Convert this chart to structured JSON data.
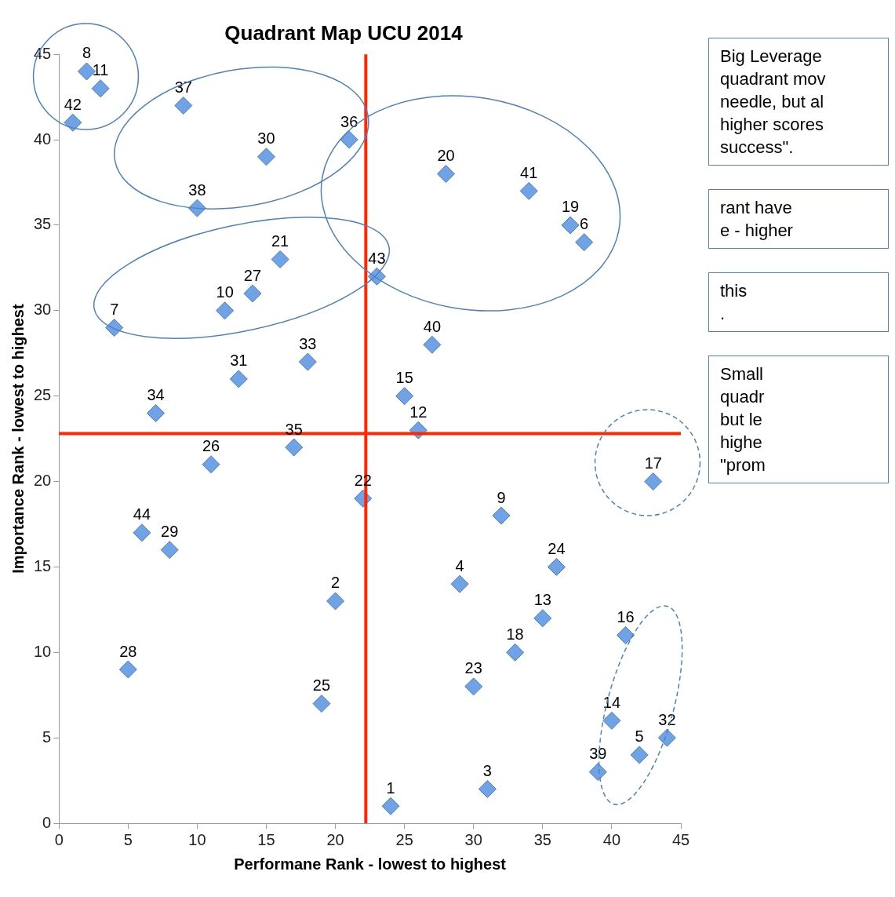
{
  "chart_data": {
    "type": "scatter",
    "title": "Quadrant Map UCU 2014",
    "xlabel": "Performane Rank - lowest to highest",
    "ylabel": "Importance Rank - lowest to highest",
    "x": [
      2,
      3,
      1,
      9,
      15,
      21,
      10,
      28,
      34,
      37,
      38,
      16,
      14,
      12,
      4,
      23,
      27,
      18,
      13,
      7,
      25,
      26,
      17,
      11,
      22,
      43,
      32,
      6,
      8,
      36,
      29,
      20,
      35,
      41,
      33,
      5,
      30,
      19,
      40,
      42,
      44,
      39,
      31,
      24
    ],
    "values": [
      44,
      43,
      41,
      42,
      39,
      40,
      36,
      38,
      37,
      35,
      34,
      33,
      31,
      30,
      29,
      32,
      28,
      27,
      26,
      24,
      25,
      23,
      22,
      21,
      19,
      20,
      18,
      17,
      16,
      15,
      14,
      13,
      12,
      11,
      10,
      9,
      8,
      7,
      6,
      4,
      5,
      3,
      2,
      1
    ],
    "color": "#6fa3e6",
    "marker": "diamond",
    "xlim": [
      0,
      45
    ],
    "ylim": [
      0,
      45
    ],
    "xticks": [
      0,
      5,
      10,
      15,
      20,
      25,
      30,
      35,
      40,
      45
    ],
    "yticks": [
      0,
      5,
      10,
      15,
      20,
      25,
      30,
      35,
      40,
      45
    ],
    "ref_lines": [
      {
        "axis": "x",
        "value": 22.2,
        "color": "#ff2600"
      },
      {
        "axis": "y",
        "value": 22.8,
        "color": "#ff2600"
      }
    ],
    "annotations": [
      "Big Leverage\nquadrant mov\nneedle, but al\nhigher scores\nsuccess\".",
      "rant have\ne - higher",
      "this\n.",
      "Small\nquadr\nbut le\n highe\n\"prom",
      {
        "text": "8",
        "x": 2,
        "y": 44
      },
      {
        "text": "11",
        "x": 3,
        "y": 43
      },
      {
        "text": "42",
        "x": 1,
        "y": 41
      },
      {
        "text": "37",
        "x": 9,
        "y": 42
      },
      {
        "text": "30",
        "x": 15,
        "y": 39
      },
      {
        "text": "36",
        "x": 21,
        "y": 40
      },
      {
        "text": "38",
        "x": 10,
        "y": 36
      },
      {
        "text": "20",
        "x": 28,
        "y": 38
      },
      {
        "text": "41",
        "x": 34,
        "y": 37
      },
      {
        "text": "19",
        "x": 37,
        "y": 35
      },
      {
        "text": "6",
        "x": 38,
        "y": 34
      },
      {
        "text": "21",
        "x": 16,
        "y": 33
      },
      {
        "text": "27",
        "x": 14,
        "y": 31
      },
      {
        "text": "10",
        "x": 12,
        "y": 30
      },
      {
        "text": "7",
        "x": 4,
        "y": 29
      },
      {
        "text": "43",
        "x": 23,
        "y": 32
      },
      {
        "text": "40",
        "x": 27,
        "y": 28
      },
      {
        "text": "33",
        "x": 18,
        "y": 27
      },
      {
        "text": "31",
        "x": 13,
        "y": 26
      },
      {
        "text": "34",
        "x": 7,
        "y": 24
      },
      {
        "text": "15",
        "x": 25,
        "y": 25
      },
      {
        "text": "12",
        "x": 26,
        "y": 23
      },
      {
        "text": "35",
        "x": 17,
        "y": 22
      },
      {
        "text": "26",
        "x": 11,
        "y": 21
      },
      {
        "text": "22",
        "x": 22,
        "y": 19
      },
      {
        "text": "17",
        "x": 43,
        "y": 20
      },
      {
        "text": "9",
        "x": 32,
        "y": 18
      },
      {
        "text": "44",
        "x": 6,
        "y": 17
      },
      {
        "text": "29",
        "x": 8,
        "y": 16
      },
      {
        "text": "24",
        "x": 36,
        "y": 15
      },
      {
        "text": "4",
        "x": 29,
        "y": 14
      },
      {
        "text": "2",
        "x": 20,
        "y": 13
      },
      {
        "text": "13",
        "x": 35,
        "y": 12
      },
      {
        "text": "16",
        "x": 41,
        "y": 11
      },
      {
        "text": "18",
        "x": 33,
        "y": 10
      },
      {
        "text": "28",
        "x": 5,
        "y": 9
      },
      {
        "text": "23",
        "x": 30,
        "y": 8
      },
      {
        "text": "25",
        "x": 19,
        "y": 7
      },
      {
        "text": "14",
        "x": 40,
        "y": 6
      },
      {
        "text": "5",
        "x": 42,
        "y": 4
      },
      {
        "text": "32",
        "x": 44,
        "y": 5
      },
      {
        "text": "39",
        "x": 39,
        "y": 3
      },
      {
        "text": "3",
        "x": 31,
        "y": 2
      },
      {
        "text": "1",
        "x": 24,
        "y": 1
      }
    ]
  }
}
